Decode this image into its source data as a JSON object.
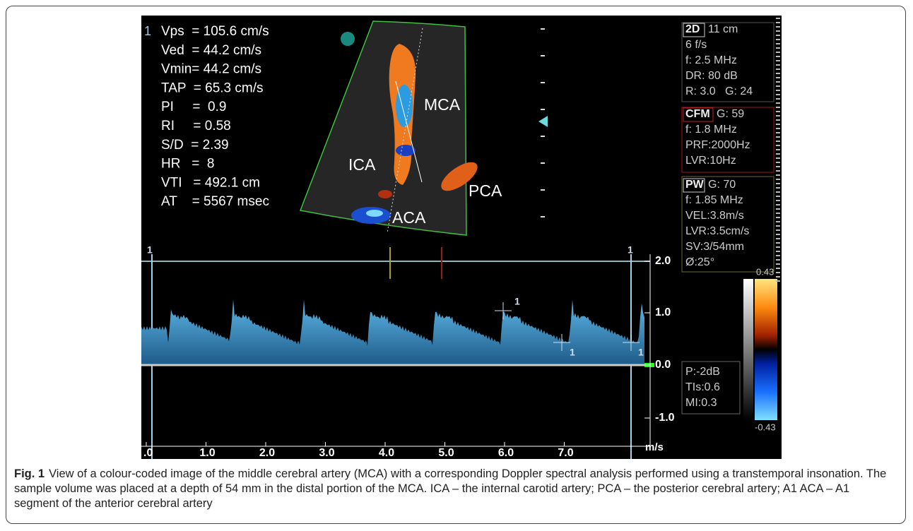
{
  "figure": {
    "cursor_number": "1",
    "measurements": [
      "Vps  = 105.6 cm/s",
      "Ved  = 44.2 cm/s",
      "Vmin= 44.2 cm/s",
      "TAP  = 65.3 cm/s",
      "PI     =  0.9",
      "RI     = 0.58",
      "S/D  = 2.39",
      "HR   =  8",
      "VTI   = 492.1 cm",
      "AT    = 5567 msec"
    ],
    "vessel_labels": [
      {
        "text": "MCA"
      },
      {
        "text": "ICA"
      },
      {
        "text": "PCA"
      },
      {
        "text": "ACA"
      }
    ],
    "settings": [
      {
        "header": "2D",
        "extra": "11 cm",
        "lines": [
          "6 f/s",
          "f: 2.5 MHz",
          "DR: 80 dB",
          "R: 3.0   G: 24"
        ]
      },
      {
        "header": "CFM",
        "extra": "G: 59",
        "lines": [
          "f: 1.8 MHz",
          "PRF:2000Hz",
          "LVR:10Hz"
        ]
      },
      {
        "header": "PW",
        "extra": "G: 70",
        "lines": [
          "f: 1.85 MHz",
          "VEL:3.8m/s",
          "LVR:3.5cm/s",
          "SV:3/54mm",
          "Ø:25°"
        ]
      }
    ],
    "power": [
      "P:-2dB",
      "TIs:0.6",
      "MI:0.3"
    ],
    "color_scale": [
      "0.43",
      "-0.43"
    ],
    "velocity_ticks": [
      "2.0",
      "1.0",
      "0.0",
      "-1.0"
    ],
    "velocity_unit": "m/s",
    "time_ticks": [
      ".0",
      "1.0",
      "2.0",
      "3.0",
      "4.0",
      "5.0",
      "6.0",
      "7.0"
    ],
    "spectrum_markers": [
      "1",
      "1",
      "1",
      "1",
      "1"
    ]
  },
  "caption": {
    "label": "Fig. 1",
    "text": "View of a colour-coded image of the middle cerebral artery (MCA) with a corresponding Doppler spectral analysis performed using a transtemporal insonation. The sample volume was placed at a depth of 54 mm in the distal portion of the MCA. ICA – the internal carotid artery; PCA – the posterior cerebral artery; A1 ACA – A1 segment of the anterior cerebral artery"
  }
}
